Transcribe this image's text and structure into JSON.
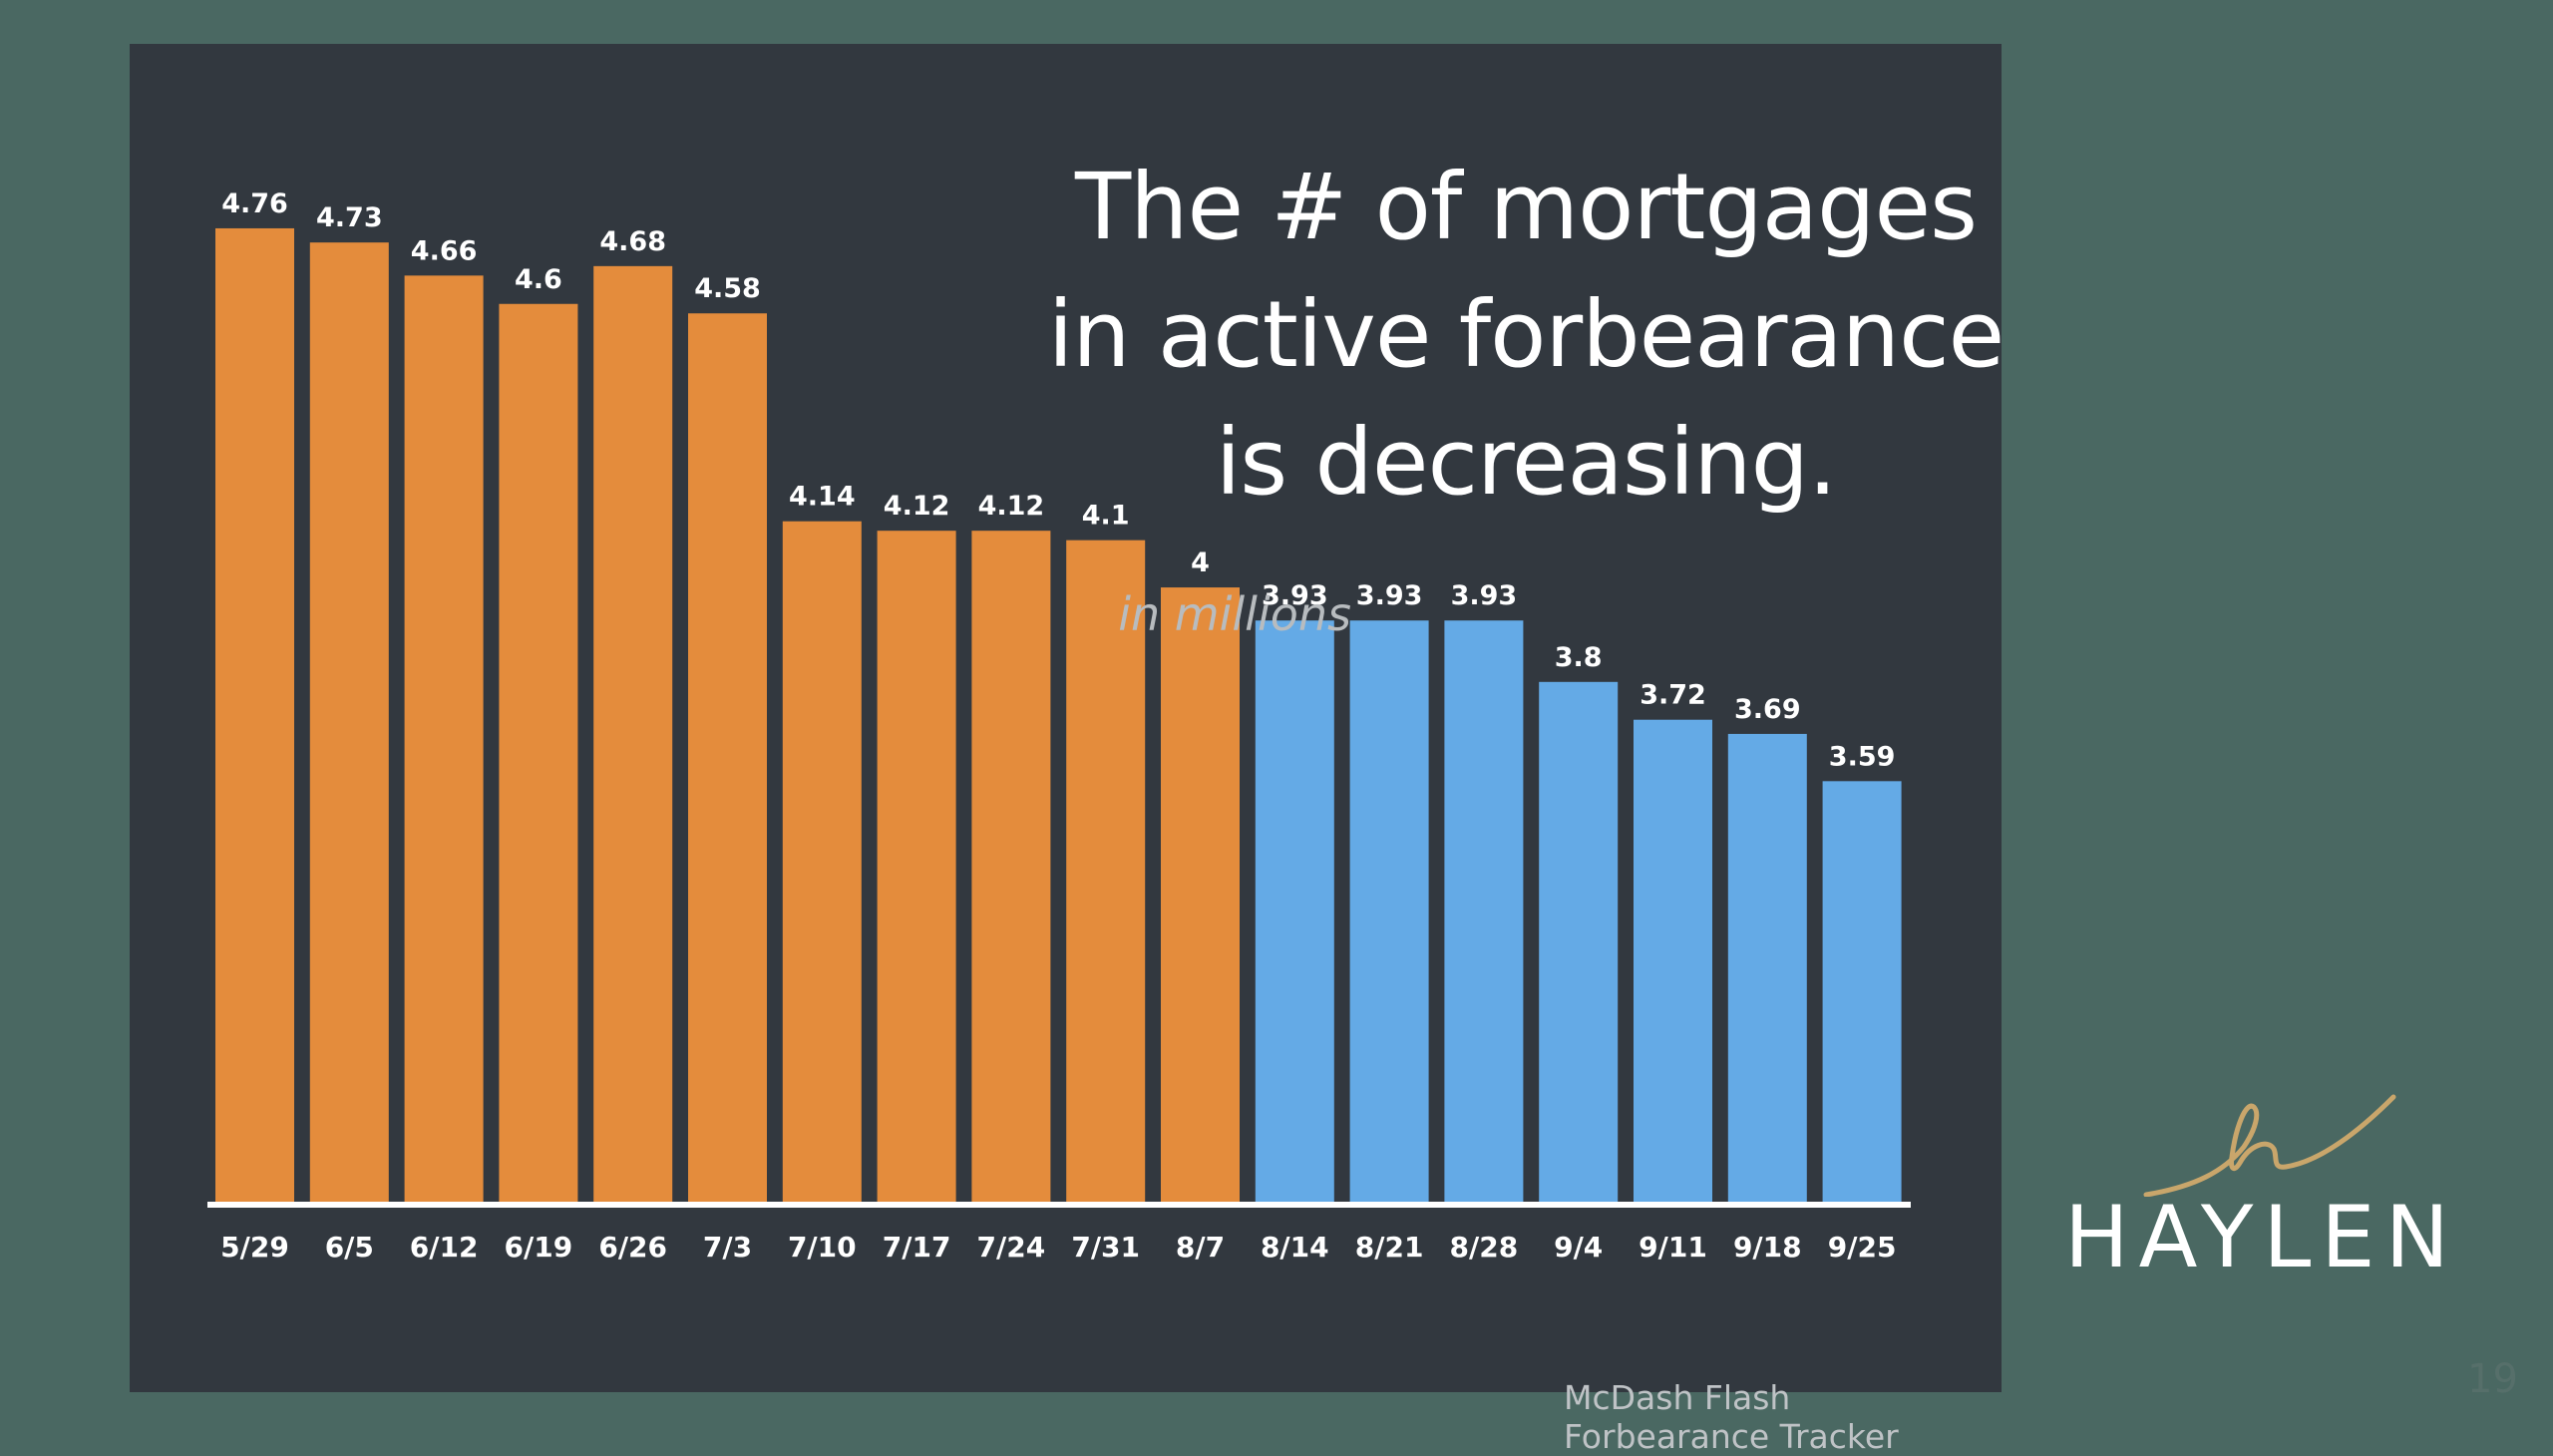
{
  "slide": {
    "title_lines": [
      "The # of mortgages",
      "in active forbearance",
      "is decreasing."
    ],
    "units": "in millions",
    "source": "McDash Flash Forbearance Tracker",
    "brand": "HAYLEN",
    "page_number": "19"
  },
  "colors": {
    "background": "#4a6862",
    "panel": "#32383f",
    "bar_orange": "#e48c3c",
    "bar_blue": "#64aae6",
    "axis": "#ffffff",
    "logo_gold": "#c9a66b"
  },
  "chart_data": {
    "type": "bar",
    "categories": [
      "5/29",
      "6/5",
      "6/12",
      "6/19",
      "6/26",
      "7/3",
      "7/10",
      "7/17",
      "7/24",
      "7/31",
      "8/7",
      "8/14",
      "8/21",
      "8/28",
      "9/4",
      "9/11",
      "9/18",
      "9/25"
    ],
    "values": [
      4.76,
      4.73,
      4.66,
      4.6,
      4.68,
      4.58,
      4.14,
      4.12,
      4.12,
      4.1,
      4,
      3.93,
      3.93,
      3.93,
      3.8,
      3.72,
      3.69,
      3.59
    ],
    "value_labels": [
      "4.76",
      "4.73",
      "4.66",
      "4.6",
      "4.68",
      "4.58",
      "4.14",
      "4.12",
      "4.12",
      "4.1",
      "4",
      "3.93",
      "3.93",
      "3.93",
      "3.8",
      "3.72",
      "3.69",
      "3.59"
    ],
    "bar_colors": [
      "#e48c3c",
      "#e48c3c",
      "#e48c3c",
      "#e48c3c",
      "#e48c3c",
      "#e48c3c",
      "#e48c3c",
      "#e48c3c",
      "#e48c3c",
      "#e48c3c",
      "#e48c3c",
      "#64aae6",
      "#64aae6",
      "#64aae6",
      "#64aae6",
      "#64aae6",
      "#64aae6",
      "#64aae6"
    ],
    "ylim": [
      2.7,
      4.8
    ],
    "grid": false,
    "legend": "none"
  }
}
